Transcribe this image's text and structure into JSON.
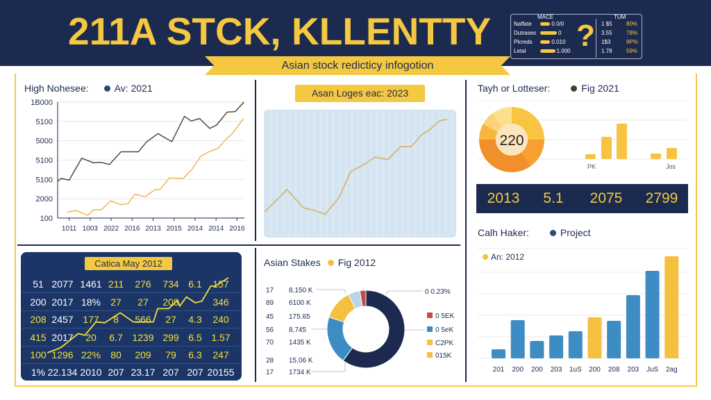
{
  "header": {
    "title": "211A STCK, KLLENTTY",
    "subtitle": "Asian stock redicticy infogotion",
    "table": {
      "left_header": "MACE",
      "right_header": "TUM",
      "rows": [
        {
          "label": "Naffate",
          "value": "0.0/0",
          "level": 0.6,
          "num": "1 $5",
          "pct": "80%"
        },
        {
          "label": "Dutrases",
          "value": "0",
          "level": 1.0,
          "num": "3.55",
          "pct": "78%"
        },
        {
          "label": "Plcreds",
          "value": "0.010",
          "level": 0.6,
          "num": "1$3",
          "pct": "9P%"
        },
        {
          "label": "Letal",
          "value": "1.000",
          "level": 0.9,
          "num": "1.78",
          "pct": "59%"
        }
      ],
      "icon": "question-mark-icon"
    }
  },
  "colors": {
    "navy": "#1b2a4e",
    "yellow": "#f5c842",
    "blue": "#3d8cc4",
    "orange": "#f0a830",
    "brown": "#4a3b2a"
  },
  "chart_data": [
    {
      "type": "line",
      "title": "High Nohesee:",
      "legend": "Av: 2021",
      "legend_color": "#1f4e79",
      "y_tick_labels": [
        "100",
        "2000",
        "5100",
        "5100",
        "5000",
        "5100",
        "1B000"
      ],
      "x_tick_labels": [
        "1011",
        "1003",
        "2022",
        "2016",
        "2013",
        "2015",
        "2014",
        "2014",
        "2016"
      ],
      "xlim": [
        -0.55,
        8.35
      ],
      "ylim": [
        0,
        6
      ],
      "grid": true,
      "series": [
        {
          "color": "#4a3b2a",
          "points": [
            [
              -0.55,
              1.9
            ],
            [
              -0.38,
              2.05
            ],
            [
              0,
              1.96
            ],
            [
              0.6,
              3.1
            ],
            [
              1.15,
              2.86
            ],
            [
              1.52,
              2.88
            ],
            [
              1.92,
              2.77
            ],
            [
              2.47,
              3.43
            ],
            [
              3.3,
              3.43
            ],
            [
              3.68,
              3.93
            ],
            [
              4.23,
              4.37
            ],
            [
              4.89,
              3.95
            ],
            [
              5.49,
              5.26
            ],
            [
              5.82,
              5.02
            ],
            [
              6.21,
              5.15
            ],
            [
              6.7,
              4.64
            ],
            [
              7.01,
              4.8
            ],
            [
              7.53,
              5.48
            ],
            [
              7.91,
              5.51
            ],
            [
              8.33,
              6
            ]
          ]
        },
        {
          "color": "#f0b040",
          "points": [
            [
              -0.11,
              0.3
            ],
            [
              0.33,
              0.39
            ],
            [
              0.88,
              0.14
            ],
            [
              1.15,
              0.42
            ],
            [
              1.54,
              0.44
            ],
            [
              1.98,
              0.89
            ],
            [
              2.47,
              0.69
            ],
            [
              2.8,
              0.75
            ],
            [
              3.13,
              1.23
            ],
            [
              3.63,
              1.1
            ],
            [
              4.07,
              1.46
            ],
            [
              4.34,
              1.49
            ],
            [
              4.78,
              2.08
            ],
            [
              5.44,
              2.05
            ],
            [
              5.88,
              2.56
            ],
            [
              6.26,
              3.19
            ],
            [
              6.7,
              3.45
            ],
            [
              7.09,
              3.6
            ],
            [
              7.47,
              4.08
            ],
            [
              7.8,
              4.4
            ],
            [
              8.3,
              5.14
            ]
          ]
        }
      ]
    },
    {
      "type": "line",
      "title": "Asan Loges eac: 2023",
      "xlim": [
        3,
        86
      ],
      "ylim": [
        0,
        100
      ],
      "series": [
        {
          "color": "#d8b060",
          "points": [
            [
              3.5,
              21
            ],
            [
              13,
              38
            ],
            [
              20,
              24
            ],
            [
              24.5,
              22
            ],
            [
              29.5,
              19
            ],
            [
              35.5,
              32
            ],
            [
              40.5,
              52
            ],
            [
              46,
              57
            ],
            [
              51,
              63
            ],
            [
              56.5,
              61
            ],
            [
              62,
              71
            ],
            [
              66.5,
              71
            ],
            [
              71,
              80
            ],
            [
              74.5,
              84
            ],
            [
              79,
              91
            ],
            [
              82,
              92
            ]
          ]
        }
      ]
    },
    {
      "type": "table",
      "title": "Catica May 2012",
      "rows": [
        [
          {
            "v": "51",
            "hl": false
          },
          {
            "v": "2077",
            "hl": false
          },
          {
            "v": "1461",
            "hl": false
          },
          {
            "v": "211",
            "hl": true
          },
          {
            "v": "276",
            "hl": true
          },
          {
            "v": "734",
            "hl": true
          },
          {
            "v": "6.1",
            "hl": true
          },
          {
            "v": "157",
            "hl": true
          }
        ],
        [
          {
            "v": "200",
            "hl": false
          },
          {
            "v": "2017",
            "hl": false
          },
          {
            "v": "18%",
            "hl": false
          },
          {
            "v": "27",
            "hl": true
          },
          {
            "v": "27",
            "hl": true
          },
          {
            "v": "208",
            "hl": true
          },
          {
            "v": "",
            "hl": true
          },
          {
            "v": "346",
            "hl": true
          }
        ],
        [
          {
            "v": "208",
            "hl": true
          },
          {
            "v": "2457",
            "hl": false
          },
          {
            "v": "177",
            "hl": true
          },
          {
            "v": "8",
            "hl": true
          },
          {
            "v": "566",
            "hl": true
          },
          {
            "v": "27",
            "hl": true
          },
          {
            "v": "4.3",
            "hl": true
          },
          {
            "v": "240",
            "hl": true
          }
        ],
        [
          {
            "v": "415",
            "hl": true
          },
          {
            "v": "2017",
            "hl": false
          },
          {
            "v": "20",
            "hl": true
          },
          {
            "v": "6.7",
            "hl": true
          },
          {
            "v": "1239",
            "hl": true
          },
          {
            "v": "299",
            "hl": true
          },
          {
            "v": "6.5",
            "hl": true
          },
          {
            "v": "1.57",
            "hl": true
          }
        ],
        [
          {
            "v": "100",
            "hl": true
          },
          {
            "v": "1296",
            "hl": true
          },
          {
            "v": "22%",
            "hl": true
          },
          {
            "v": "80",
            "hl": true
          },
          {
            "v": "209",
            "hl": true
          },
          {
            "v": "79",
            "hl": true
          },
          {
            "v": "6.3",
            "hl": true
          },
          {
            "v": "247",
            "hl": true
          }
        ],
        [
          {
            "v": "1%",
            "hl": false
          },
          {
            "v": "22.134",
            "hl": false
          },
          {
            "v": "2010",
            "hl": false
          },
          {
            "v": "207",
            "hl": false
          },
          {
            "v": "23.17",
            "hl": false
          },
          {
            "v": "207",
            "hl": false
          },
          {
            "v": "207",
            "hl": false
          },
          {
            "v": "20155",
            "hl": false
          }
        ]
      ],
      "trend": {
        "color": "#f5e03a",
        "ylim": [
          0,
          100
        ],
        "xlim": [
          0,
          100
        ],
        "points": [
          [
            12,
            10
          ],
          [
            18,
            16
          ],
          [
            26,
            33
          ],
          [
            29,
            31
          ],
          [
            34,
            47
          ],
          [
            38,
            46
          ],
          [
            45,
            58
          ],
          [
            51,
            47
          ],
          [
            60,
            47
          ],
          [
            62,
            63
          ],
          [
            67,
            63
          ],
          [
            71,
            73
          ],
          [
            72,
            66
          ],
          [
            75,
            77
          ],
          [
            79,
            70
          ],
          [
            82,
            72
          ],
          [
            86,
            90
          ],
          [
            88,
            90
          ],
          [
            94,
            100
          ]
        ]
      }
    },
    {
      "type": "pie",
      "title": "Asian Stakes",
      "legend": "Fig 2012",
      "slices": [
        {
          "value": 60,
          "color": "#1b2a4e"
        },
        {
          "value": 20,
          "color": "#3d8cc4"
        },
        {
          "value": 12.5,
          "color": "#f5c040"
        },
        {
          "value": 5,
          "color": "#b8d4ea"
        },
        {
          "value": 2.5,
          "color": "#c84848"
        }
      ],
      "left_labels": [
        [
          "17",
          "8,150 K"
        ],
        [
          "89",
          "6100 K"
        ],
        [
          "45",
          "175.65"
        ],
        [
          "56",
          "8,745"
        ],
        [
          "70",
          "1435 K"
        ],
        [
          "28",
          "15.06 K"
        ],
        [
          "17",
          "1734 K"
        ]
      ],
      "top_right_label": "0 0.23%",
      "legend_items": [
        {
          "label": "0 5EK",
          "color": "#c84848"
        },
        {
          "label": "0 5eK",
          "color": "#3d8cc4"
        },
        {
          "label": "C2PK",
          "color": "#f5c040"
        },
        {
          "label": "015K",
          "color": "#f5c040"
        }
      ]
    },
    {
      "type": "bar",
      "title": "Tayh or Lotteser:",
      "legend": "Fig 2021",
      "legend_color": "#4a3b2a",
      "donut_center": "220",
      "donut_slices": [
        {
          "value": 25,
          "color": "#f9c440"
        },
        {
          "value": 15,
          "color": "#f5a030"
        },
        {
          "value": 35,
          "color": "#f0902a"
        },
        {
          "value": 8,
          "color": "#f7b640"
        },
        {
          "value": 7,
          "color": "#fcd27a"
        },
        {
          "value": 10,
          "color": "#fde08a"
        }
      ],
      "values": [
        7,
        32,
        51,
        8,
        16
      ],
      "ylim": [
        0,
        84
      ],
      "x_labels": [
        "PK",
        "Jos"
      ],
      "stats": [
        "2013",
        "5.1",
        "2075",
        "2799"
      ]
    },
    {
      "type": "bar",
      "title": "Calh Haker:",
      "legend": "Project",
      "legend_color": "#1f4e79",
      "legend2": "An: 2012",
      "legend2_color": "#f5c040",
      "categories": [
        "201",
        "200",
        "200",
        "203",
        "1uS",
        "200",
        "208",
        "203",
        "JuS",
        "2ag"
      ],
      "values": [
        13,
        55,
        25,
        33,
        39,
        59,
        54,
        91,
        126,
        147
      ],
      "highlight": [
        false,
        false,
        false,
        false,
        false,
        true,
        false,
        false,
        false,
        true
      ],
      "ylim": [
        0,
        158
      ]
    }
  ]
}
